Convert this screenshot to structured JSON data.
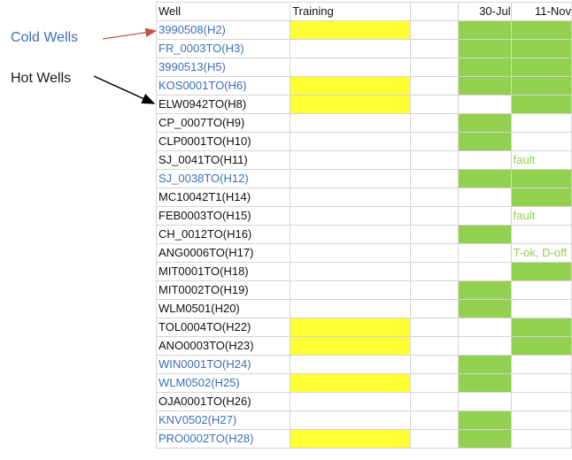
{
  "annotations": {
    "cold": "Cold Wells",
    "hot": "Hot Wells"
  },
  "colors": {
    "cold_text": "#3b6fb6",
    "training_fill": "#ffff33",
    "good_fill": "#92d050",
    "arrow_cold": "#c0504d",
    "arrow_hot": "#000000"
  },
  "columns": [
    "Well",
    "Training",
    "",
    "30-Jul",
    "11-Nov"
  ],
  "rows": [
    {
      "well": "3990508(H2)",
      "type": "cold",
      "training": true,
      "jul": true,
      "nov": true,
      "note": ""
    },
    {
      "well": "FR_0003TO(H3)",
      "type": "cold",
      "training": false,
      "jul": true,
      "nov": true,
      "note": ""
    },
    {
      "well": "3990513(H5)",
      "type": "cold",
      "training": false,
      "jul": true,
      "nov": true,
      "note": ""
    },
    {
      "well": "KOS0001TO(H6)",
      "type": "cold",
      "training": true,
      "jul": true,
      "nov": true,
      "note": ""
    },
    {
      "well": "ELW0942TO(H8)",
      "type": "hot",
      "training": true,
      "jul": false,
      "nov": true,
      "note": ""
    },
    {
      "well": "CP_0007TO(H9)",
      "type": "hot",
      "training": false,
      "jul": true,
      "nov": false,
      "note": ""
    },
    {
      "well": "CLP0001TO(H10)",
      "type": "hot",
      "training": false,
      "jul": true,
      "nov": false,
      "note": ""
    },
    {
      "well": "SJ_0041TO(H11)",
      "type": "hot",
      "training": false,
      "jul": false,
      "nov": false,
      "note": "fault"
    },
    {
      "well": "SJ_0038TO(H12)",
      "type": "cold",
      "training": false,
      "jul": true,
      "nov": true,
      "note": ""
    },
    {
      "well": "MC10042T1(H14)",
      "type": "hot",
      "training": false,
      "jul": false,
      "nov": true,
      "note": ""
    },
    {
      "well": "FEB0003TO(H15)",
      "type": "hot",
      "training": false,
      "jul": false,
      "nov": false,
      "note": "fault"
    },
    {
      "well": "CH_0012TO(H16)",
      "type": "hot",
      "training": false,
      "jul": true,
      "nov": false,
      "note": ""
    },
    {
      "well": "ANG0006TO(H17)",
      "type": "hot",
      "training": false,
      "jul": false,
      "nov": false,
      "note": "T-ok, D-off"
    },
    {
      "well": "MIT0001TO(H18)",
      "type": "hot",
      "training": false,
      "jul": false,
      "nov": true,
      "note": ""
    },
    {
      "well": "MIT0002TO(H19)",
      "type": "hot",
      "training": false,
      "jul": true,
      "nov": false,
      "note": ""
    },
    {
      "well": "WLM0501(H20)",
      "type": "hot",
      "training": false,
      "jul": true,
      "nov": false,
      "note": ""
    },
    {
      "well": "TOL0004TO(H22)",
      "type": "hot",
      "training": true,
      "jul": false,
      "nov": true,
      "note": ""
    },
    {
      "well": "ANO0003TO(H23)",
      "type": "hot",
      "training": true,
      "jul": false,
      "nov": true,
      "note": ""
    },
    {
      "well": "WIN0001TO(H24)",
      "type": "cold",
      "training": false,
      "jul": true,
      "nov": false,
      "note": ""
    },
    {
      "well": "WLM0502(H25)",
      "type": "cold",
      "training": true,
      "jul": true,
      "nov": false,
      "note": ""
    },
    {
      "well": "OJA0001TO(H26)",
      "type": "hot",
      "training": false,
      "jul": false,
      "nov": false,
      "note": ""
    },
    {
      "well": "KNV0502(H27)",
      "type": "cold",
      "training": false,
      "jul": true,
      "nov": false,
      "note": ""
    },
    {
      "well": "PRO0002TO(H28)",
      "type": "cold",
      "training": true,
      "jul": true,
      "nov": false,
      "note": ""
    }
  ]
}
